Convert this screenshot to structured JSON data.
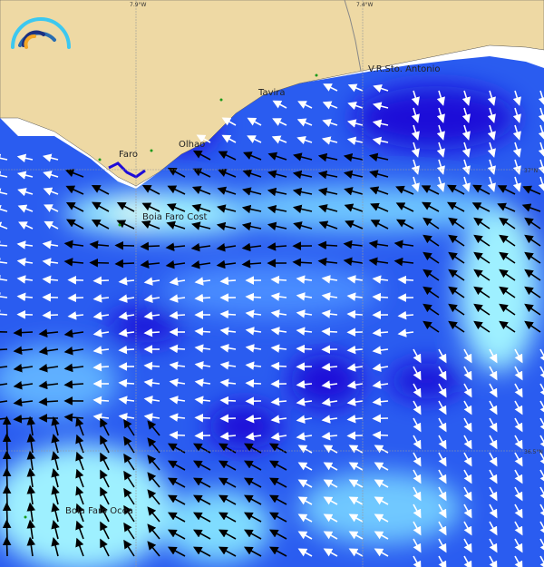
{
  "map": {
    "grid_labels": {
      "lon_1": "7.9°W",
      "lon_2": "7.4°W",
      "lat_1": "37°N",
      "lat_2": "36.5°N"
    },
    "places": [
      {
        "name": "Faro"
      },
      {
        "name": "Olhao"
      },
      {
        "name": "Tavira"
      },
      {
        "name": "V.R.Sto. Antonio"
      },
      {
        "name": "Boia Faro Cost"
      },
      {
        "name": "Boia Faro Ocea"
      }
    ],
    "colors": {
      "land": "#eed9a4",
      "ocean_base": "#2a5cf0",
      "ocean_strong": "#1e0cd8",
      "ocean_light": "#9ef0ff",
      "arrow_fast": "#000000",
      "arrow_slow": "#ffffff"
    },
    "logo": "arc-waves-logo"
  }
}
